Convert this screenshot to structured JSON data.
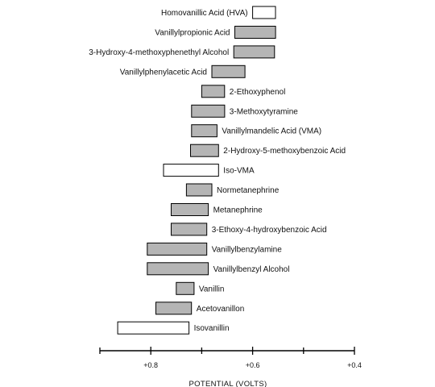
{
  "chart_data": {
    "type": "bar",
    "subtype": "floating-range",
    "xlabel": "POTENTIAL (VOLTS)",
    "xlim": [
      0.9,
      0.4
    ],
    "xticks": [
      0.8,
      0.6,
      0.4
    ],
    "xtick_labels": [
      "+0.8",
      "+0.6",
      "+0.4"
    ],
    "colors": {
      "filled": "#b5b5b5",
      "open": "#ffffff",
      "edge": "#000000"
    },
    "compounds": [
      {
        "name": "Homovanillic Acid (HVA)",
        "start": 0.6,
        "end": 0.555,
        "fill": "open",
        "label_side": "left"
      },
      {
        "name": "Vanillylpropionic Acid",
        "start": 0.635,
        "end": 0.555,
        "fill": "filled",
        "label_side": "left"
      },
      {
        "name": "3-Hydroxy-4-methoxyphenethyl Alcohol",
        "start": 0.637,
        "end": 0.557,
        "fill": "filled",
        "label_side": "left"
      },
      {
        "name": "Vanillylphenylacetic Acid",
        "start": 0.68,
        "end": 0.615,
        "fill": "filled",
        "label_side": "left"
      },
      {
        "name": "2-Ethoxyphenol",
        "start": 0.7,
        "end": 0.655,
        "fill": "filled",
        "label_side": "right"
      },
      {
        "name": "3-Methoxytyramine",
        "start": 0.72,
        "end": 0.655,
        "fill": "filled",
        "label_side": "right"
      },
      {
        "name": "Vanillylmandelic Acid (VMA)",
        "start": 0.72,
        "end": 0.67,
        "fill": "filled",
        "label_side": "right"
      },
      {
        "name": "2-Hydroxy-5-methoxybenzoic Acid",
        "start": 0.722,
        "end": 0.667,
        "fill": "filled",
        "label_side": "right"
      },
      {
        "name": "Iso-VMA",
        "start": 0.775,
        "end": 0.667,
        "fill": "open",
        "label_side": "right"
      },
      {
        "name": "Normetanephrine",
        "start": 0.73,
        "end": 0.68,
        "fill": "filled",
        "label_side": "right"
      },
      {
        "name": "Metanephrine",
        "start": 0.76,
        "end": 0.687,
        "fill": "filled",
        "label_side": "right"
      },
      {
        "name": "3-Ethoxy-4-hydroxybenzoic Acid",
        "start": 0.76,
        "end": 0.69,
        "fill": "filled",
        "label_side": "right"
      },
      {
        "name": "Vanillylbenzylamine",
        "start": 0.807,
        "end": 0.69,
        "fill": "filled",
        "label_side": "right"
      },
      {
        "name": "Vanillylbenzyl Alcohol",
        "start": 0.807,
        "end": 0.687,
        "fill": "filled",
        "label_side": "right"
      },
      {
        "name": "Vanillin",
        "start": 0.75,
        "end": 0.715,
        "fill": "filled",
        "label_side": "right"
      },
      {
        "name": "Acetovanillon",
        "start": 0.79,
        "end": 0.72,
        "fill": "filled",
        "label_side": "right"
      },
      {
        "name": "Isovanillin",
        "start": 0.865,
        "end": 0.725,
        "fill": "open",
        "label_side": "right"
      }
    ]
  }
}
